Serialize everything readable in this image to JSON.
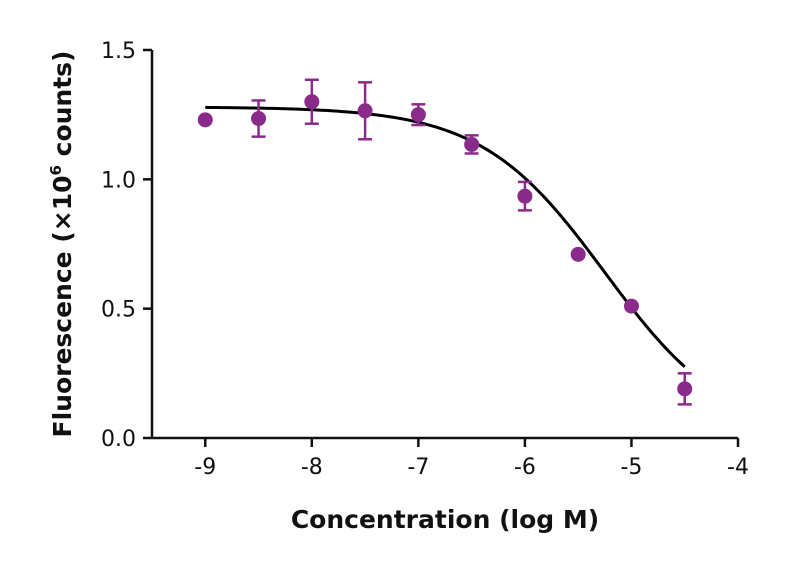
{
  "chart_data": {
    "type": "scatter",
    "xlabel": "Concentration (log M)",
    "ylabel": {
      "main": "Fluorescence (×10",
      "superscript": "6",
      "suffix": " counts)"
    },
    "xlim": [
      -9.5,
      -4
    ],
    "ylim": [
      0,
      1.5
    ],
    "xticks": [
      -9,
      -8,
      -7,
      -6,
      -5,
      -4
    ],
    "xtick_labels": [
      "-9",
      "-8",
      "-7",
      "-6",
      "-5",
      "-4"
    ],
    "yticks": [
      0,
      0.5,
      1.0,
      1.5
    ],
    "ytick_labels": [
      "0.0",
      "0.5",
      "1.0",
      "1.5"
    ],
    "grid": false,
    "series": [
      {
        "x": [
          -9,
          -8.5,
          -8,
          -7.5,
          -7,
          -6.5,
          -6,
          -5.5,
          -5,
          -4.5
        ],
        "y": [
          1.23,
          1.235,
          1.3,
          1.265,
          1.25,
          1.135,
          0.935,
          0.71,
          0.51,
          0.19
        ],
        "error": [
          0,
          0.07,
          0.085,
          0.11,
          0.04,
          0.035,
          0.055,
          0,
          0,
          0.06
        ],
        "color": "#8a2a8a"
      }
    ],
    "fit_curve": {
      "type": "four-parameter-logistic",
      "top": 1.28,
      "bottom": 0.0,
      "log_ic50": -5.25,
      "hill_slope": -0.75,
      "x_range": [
        -9,
        -4.5
      ],
      "color": "#000000"
    }
  }
}
